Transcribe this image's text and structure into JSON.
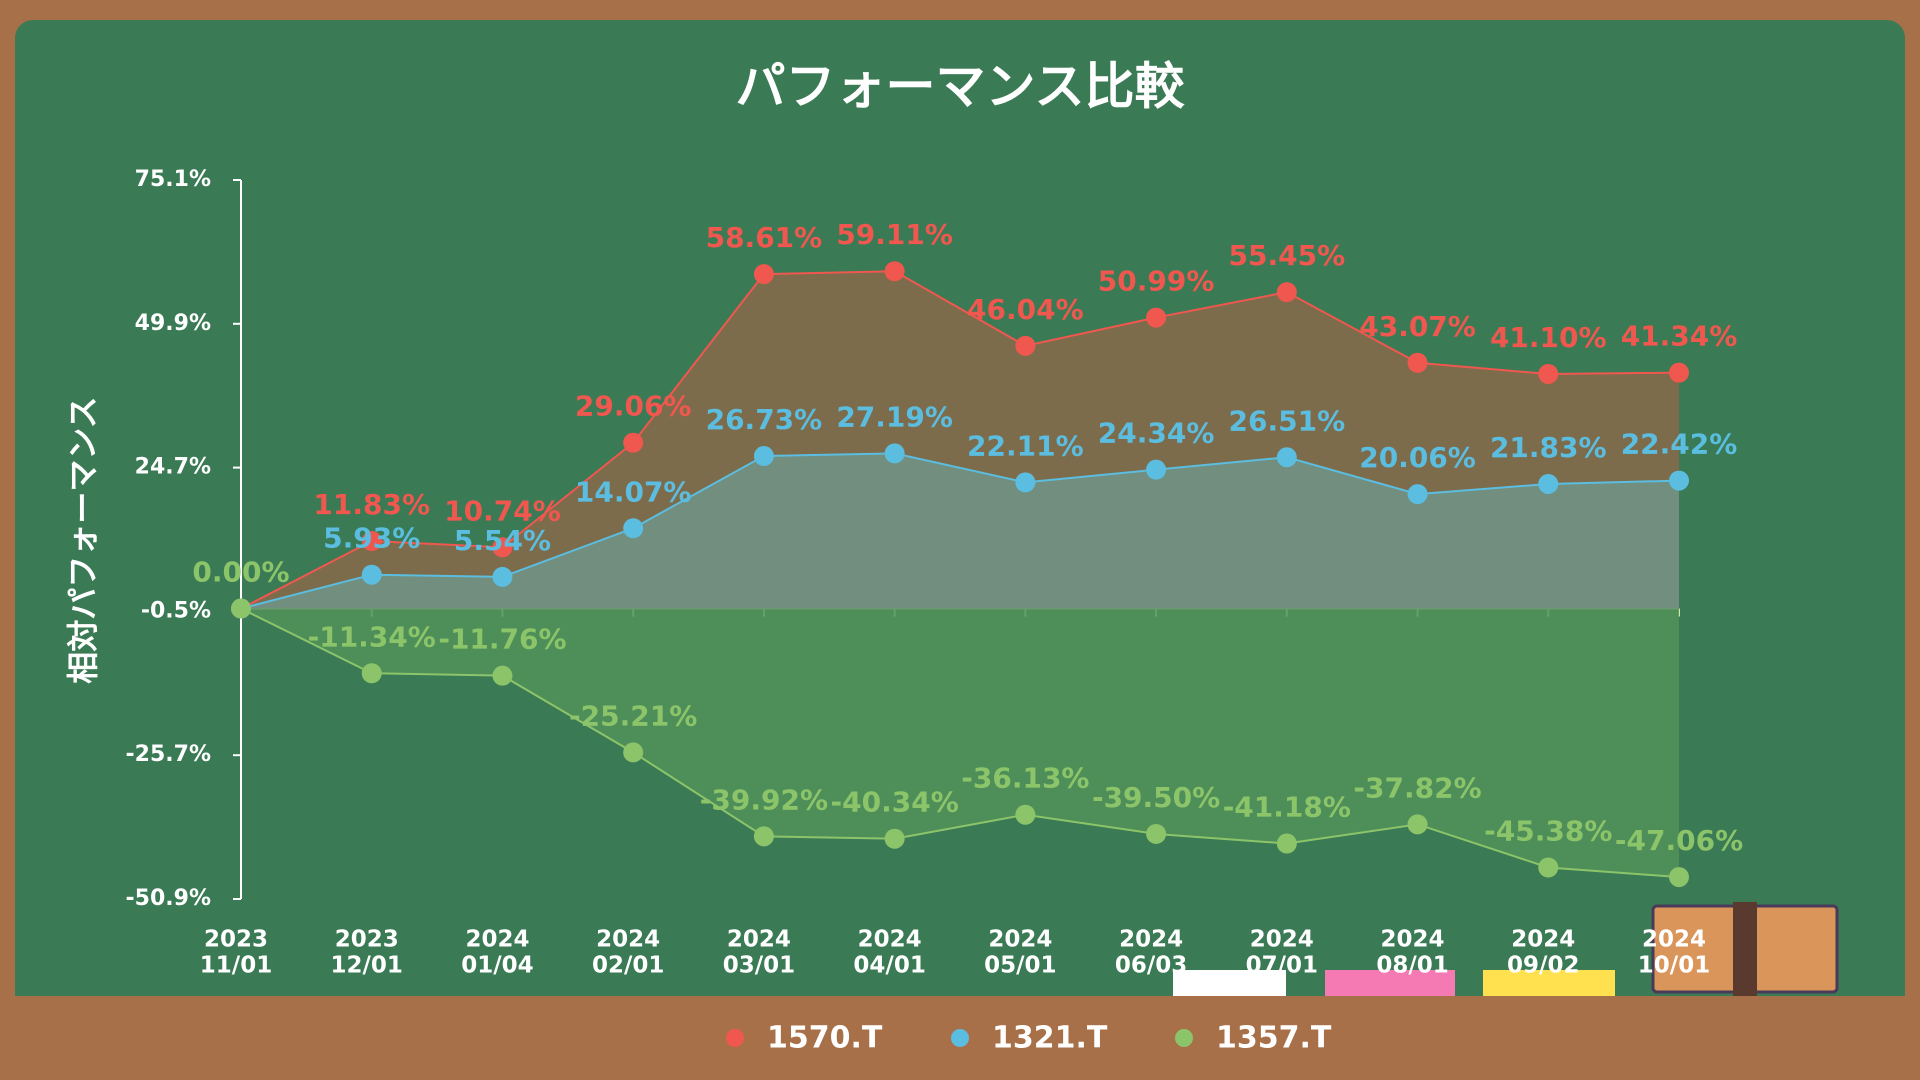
{
  "chart_data": {
    "type": "line",
    "title": "パフォーマンス比較",
    "y_label": "相対パフォーマンス",
    "categories": [
      [
        "2023",
        "11/01"
      ],
      [
        "2023",
        "12/01"
      ],
      [
        "2024",
        "01/04"
      ],
      [
        "2024",
        "02/01"
      ],
      [
        "2024",
        "03/01"
      ],
      [
        "2024",
        "04/01"
      ],
      [
        "2024",
        "05/01"
      ],
      [
        "2024",
        "06/03"
      ],
      [
        "2024",
        "07/01"
      ],
      [
        "2024",
        "08/01"
      ],
      [
        "2024",
        "09/02"
      ],
      [
        "2024",
        "10/01"
      ]
    ],
    "series": [
      {
        "name": "1570.T",
        "color": "#f0574f",
        "fill": "#8a6a4a",
        "values": [
          0,
          11.83,
          10.74,
          29.06,
          58.61,
          59.11,
          46.04,
          50.99,
          55.45,
          43.07,
          41.1,
          41.34
        ],
        "value_labels": [
          null,
          "11.83%",
          "10.74%",
          "29.06%",
          "58.61%",
          "59.11%",
          "46.04%",
          "50.99%",
          "55.45%",
          "43.07%",
          "41.10%",
          "41.34%"
        ]
      },
      {
        "name": "1321.T",
        "color": "#5bbde0",
        "fill": "#6f9488",
        "values": [
          0,
          5.93,
          5.54,
          14.07,
          26.73,
          27.19,
          22.11,
          24.34,
          26.51,
          20.06,
          21.83,
          22.42
        ],
        "value_labels": [
          null,
          "5.93%",
          "5.54%",
          "14.07%",
          "26.73%",
          "27.19%",
          "22.11%",
          "24.34%",
          "26.51%",
          "20.06%",
          "21.83%",
          "22.42%"
        ]
      },
      {
        "name": "1357.T",
        "color": "#8cc46a",
        "fill": "#52935a",
        "values": [
          0,
          -11.34,
          -11.76,
          -25.21,
          -39.92,
          -40.34,
          -36.13,
          -39.5,
          -41.18,
          -37.82,
          -45.38,
          -47.06
        ],
        "value_labels": [
          "0.00%",
          "-11.34%",
          "-11.76%",
          "-25.21%",
          "-39.92%",
          "-40.34%",
          "-36.13%",
          "-39.50%",
          "-41.18%",
          "-37.82%",
          "-45.38%",
          "-47.06%"
        ]
      }
    ],
    "ylim": [
      -50.9,
      75.1
    ],
    "yticks": [
      {
        "value": 75.1,
        "label": "75.1%"
      },
      {
        "value": 49.9,
        "label": "49.9%"
      },
      {
        "value": 24.7,
        "label": "24.7%"
      },
      {
        "value": -0.5,
        "label": "-0.5%"
      },
      {
        "value": -25.7,
        "label": "-25.7%"
      },
      {
        "value": -50.9,
        "label": "-50.9%"
      }
    ],
    "legend": "bottom"
  }
}
